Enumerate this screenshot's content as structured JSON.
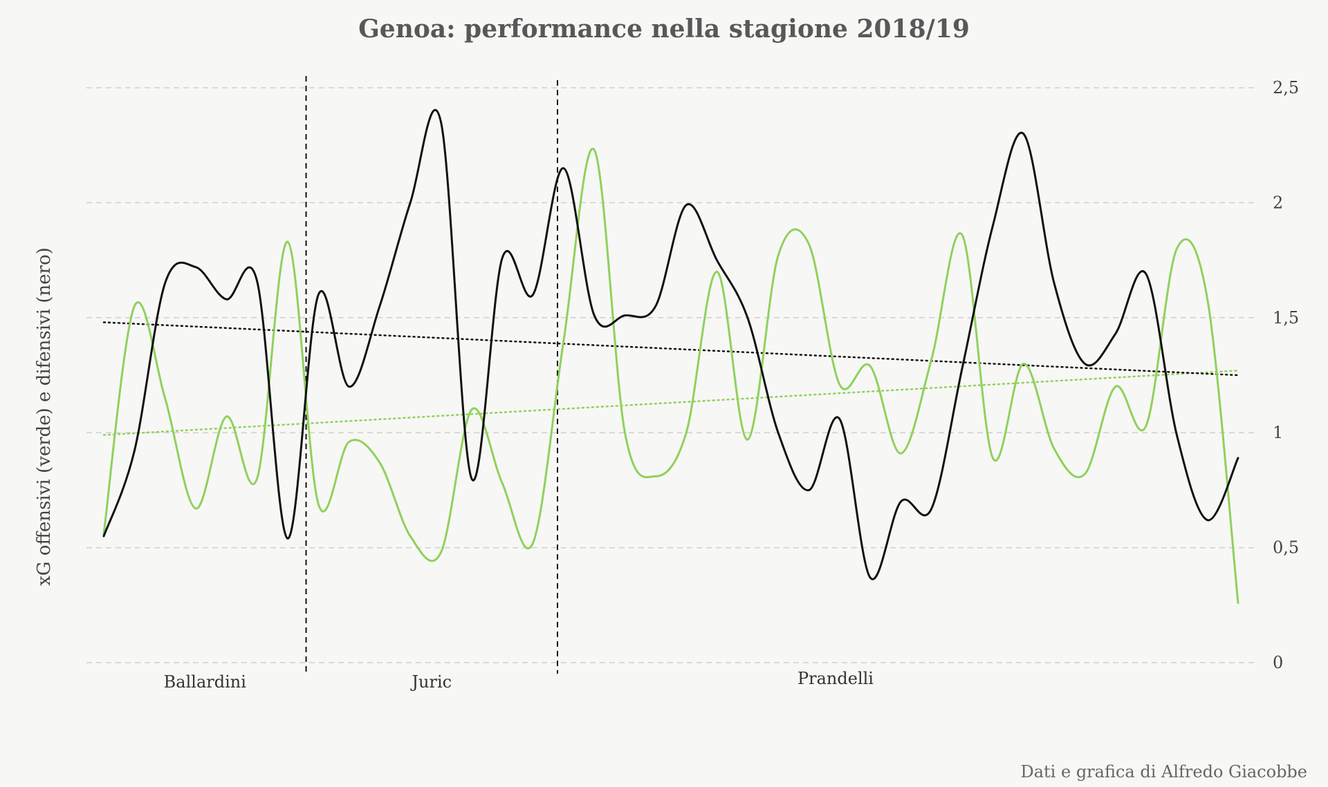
{
  "chart_data": {
    "type": "line",
    "title": "Genoa: performance nella stagione 2018/19",
    "ylabel": "xG offensivi (verde) e difensivi (nero)",
    "xlabel": "",
    "ylim": [
      0,
      2.5
    ],
    "y_ticks": [
      {
        "value": 0,
        "label": "0"
      },
      {
        "value": 0.5,
        "label": "0,5"
      },
      {
        "value": 1,
        "label": "1"
      },
      {
        "value": 1.5,
        "label": "1,5"
      },
      {
        "value": 2,
        "label": "2"
      },
      {
        "value": 2.5,
        "label": "2,5"
      }
    ],
    "y_axis_side": "right",
    "grid": true,
    "legend": "none",
    "matchdays": [
      1,
      2,
      3,
      4,
      5,
      6,
      7,
      8,
      9,
      10,
      11,
      12,
      13,
      14,
      15,
      16,
      17,
      18,
      19,
      20,
      21,
      22,
      23,
      24,
      25,
      26,
      27,
      28,
      29,
      30,
      31,
      32,
      33,
      34,
      35,
      36,
      37,
      38
    ],
    "series": [
      {
        "color": "#8fd15c",
        "values": [
          0.56,
          1.55,
          1.15,
          0.67,
          1.07,
          0.8,
          1.83,
          0.69,
          0.96,
          0.87,
          0.55,
          0.48,
          1.1,
          0.78,
          0.52,
          1.4,
          2.23,
          1.0,
          0.81,
          1.0,
          1.7,
          0.97,
          1.77,
          1.82,
          1.21,
          1.29,
          0.91,
          1.32,
          1.86,
          0.89,
          1.3,
          0.93,
          0.82,
          1.2,
          1.03,
          1.8,
          1.58,
          0.26
        ]
      },
      {
        "color": "#111111",
        "values": [
          0.55,
          0.92,
          1.65,
          1.72,
          1.58,
          1.66,
          0.54,
          1.6,
          1.2,
          1.55,
          2.0,
          2.35,
          0.8,
          1.76,
          1.6,
          2.15,
          1.51,
          1.51,
          1.55,
          1.99,
          1.75,
          1.5,
          1.0,
          0.75,
          1.06,
          0.37,
          0.7,
          0.67,
          1.28,
          1.9,
          2.3,
          1.65,
          1.3,
          1.43,
          1.69,
          0.99,
          0.62,
          0.89
        ]
      }
    ],
    "trendlines": [
      {
        "color": "#8fd15c",
        "start": 0.99,
        "end": 1.27
      },
      {
        "color": "#111111",
        "start": 1.48,
        "end": 1.25
      }
    ],
    "periods": [
      {
        "label": "Ballardini",
        "from": 1,
        "to": 7.6
      },
      {
        "label": "Juric",
        "from": 7.6,
        "to": 15.8
      },
      {
        "label": "Prandelli",
        "from": 15.8,
        "to": 38
      }
    ],
    "source": "Dati e grafica di Alfredo Giacobbe"
  }
}
